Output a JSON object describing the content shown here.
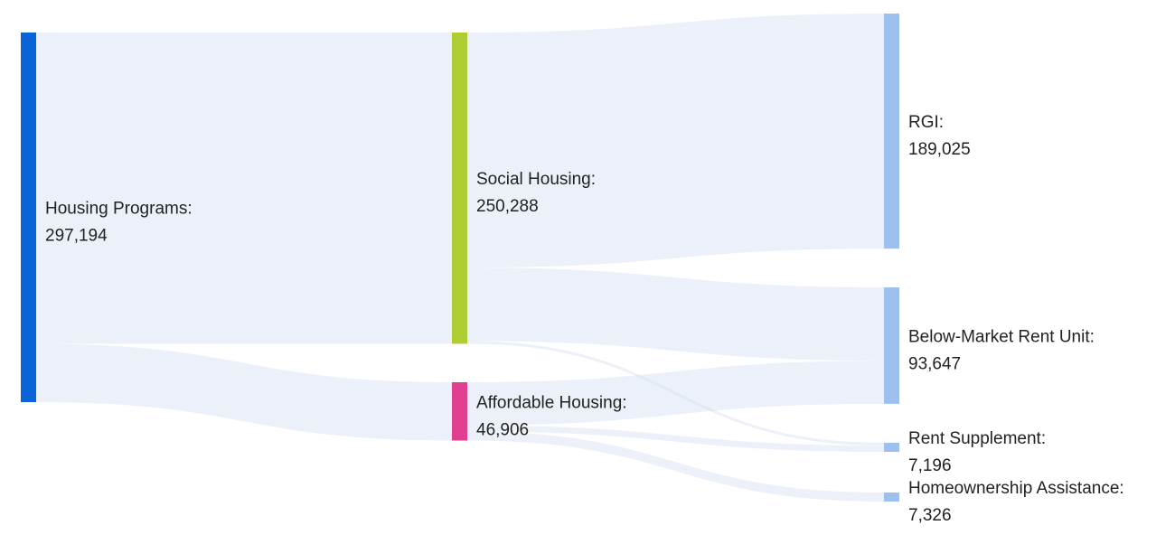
{
  "chart_data": {
    "type": "sankey",
    "title": "",
    "unit": "",
    "nodes": [
      {
        "id": "housing_programs",
        "label": "Housing Programs:",
        "value": 297194,
        "value_label": "297,194",
        "color": "#0a63d6"
      },
      {
        "id": "social_housing",
        "label": "Social Housing:",
        "value": 250288,
        "value_label": "250,288",
        "color": "#b0cd33"
      },
      {
        "id": "affordable_housing",
        "label": "Affordable Housing:",
        "value": 46906,
        "value_label": "46,906",
        "color": "#e0408f"
      },
      {
        "id": "rgi",
        "label": "RGI:",
        "value": 189025,
        "value_label": "189,025",
        "color": "#9dc0ef"
      },
      {
        "id": "below_market_rent_unit",
        "label": "Below-Market Rent Unit:",
        "value": 93647,
        "value_label": "93,647",
        "color": "#9dc0ef"
      },
      {
        "id": "rent_supplement",
        "label": "Rent Supplement:",
        "value": 7196,
        "value_label": "7,196",
        "color": "#9dc0ef"
      },
      {
        "id": "homeownership_assistance",
        "label": "Homeownership Assistance:",
        "value": 7326,
        "value_label": "7,326",
        "color": "#9dc0ef"
      }
    ],
    "links": [
      {
        "source": "housing_programs",
        "target": "social_housing",
        "value": 250288
      },
      {
        "source": "housing_programs",
        "target": "affordable_housing",
        "value": 46906
      },
      {
        "source": "social_housing",
        "target": "rgi",
        "value": 189025
      },
      {
        "source": "social_housing",
        "target": "below_market_rent_unit",
        "value": 59000
      },
      {
        "source": "social_housing",
        "target": "rent_supplement",
        "value": 2263
      },
      {
        "source": "affordable_housing",
        "target": "below_market_rent_unit",
        "value": 34647
      },
      {
        "source": "affordable_housing",
        "target": "rent_supplement",
        "value": 4933
      },
      {
        "source": "affordable_housing",
        "target": "homeownership_assistance",
        "value": 7326
      }
    ],
    "link_color": "#c9d8ee"
  }
}
